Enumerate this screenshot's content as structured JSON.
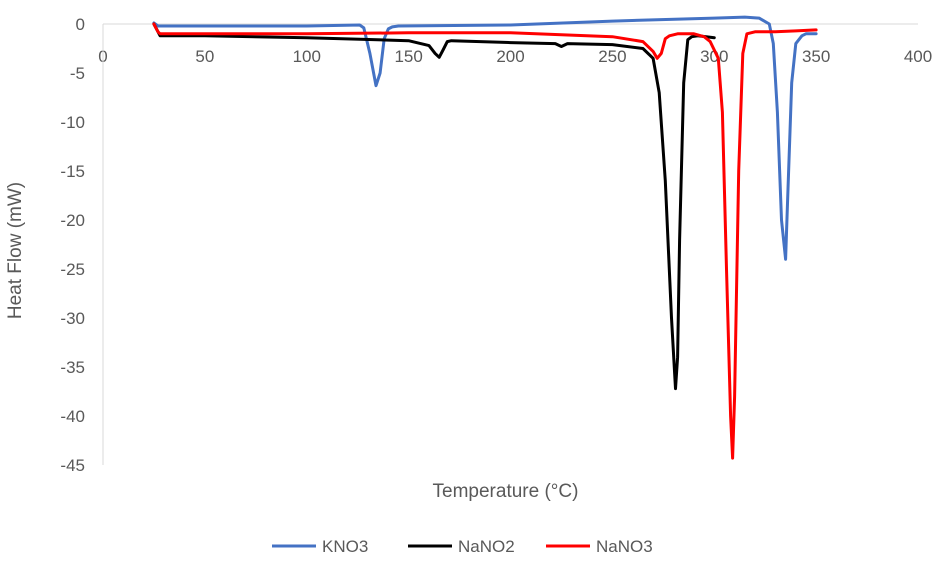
{
  "chart_data": {
    "type": "line",
    "title": "",
    "xlabel": "Temperature (°C)",
    "ylabel": "Heat Flow (mW)",
    "xlim": [
      0,
      400
    ],
    "ylim": [
      -45,
      0
    ],
    "x_ticks": [
      "0",
      "50",
      "100",
      "150",
      "200",
      "250",
      "300",
      "350",
      "400"
    ],
    "y_ticks": [
      "0",
      "-5",
      "-10",
      "-15",
      "-20",
      "-25",
      "-30",
      "-35",
      "-40",
      "-45"
    ],
    "grid": false,
    "legend_position": "bottom",
    "series": [
      {
        "name": "KNO3",
        "color": "#4472C4",
        "x": [
          25,
          27,
          50,
          100,
          126,
          128,
          131,
          134,
          136,
          138,
          140,
          142,
          145,
          200,
          250,
          300,
          315,
          322,
          327,
          329,
          331,
          333,
          335,
          336,
          338,
          340,
          343,
          345,
          350
        ],
        "y": [
          0.1,
          -0.2,
          -0.2,
          -0.2,
          -0.1,
          -0.4,
          -3.0,
          -6.3,
          -5.0,
          -1.5,
          -0.5,
          -0.3,
          -0.2,
          -0.1,
          0.3,
          0.6,
          0.7,
          0.6,
          0.0,
          -2.0,
          -9.0,
          -20.0,
          -24.0,
          -18.0,
          -6.0,
          -2.0,
          -1.2,
          -1.0,
          -1.0
        ]
      },
      {
        "name": "NaNO2",
        "color": "#000000",
        "x": [
          25,
          27,
          28,
          50,
          100,
          150,
          160,
          163,
          165,
          167,
          169,
          171,
          200,
          222,
          225,
          228,
          250,
          265,
          270,
          273,
          276,
          279,
          281,
          282,
          283,
          285,
          287,
          289,
          292,
          296,
          300
        ],
        "y": [
          0.0,
          -0.8,
          -1.2,
          -1.2,
          -1.4,
          -1.7,
          -2.2,
          -3.0,
          -3.4,
          -2.6,
          -1.8,
          -1.7,
          -1.9,
          -2.0,
          -2.3,
          -2.0,
          -2.1,
          -2.5,
          -3.5,
          -7.0,
          -16.0,
          -30.0,
          -37.2,
          -34.0,
          -22.0,
          -6.0,
          -1.6,
          -1.3,
          -1.2,
          -1.3,
          -1.4
        ]
      },
      {
        "name": "NaNO3",
        "color": "#FF0000",
        "x": [
          25,
          27,
          28,
          50,
          100,
          150,
          200,
          250,
          265,
          270,
          272,
          274,
          276,
          278,
          282,
          290,
          295,
          298,
          302,
          304,
          306,
          308,
          309,
          310,
          312,
          314,
          316,
          320,
          330,
          340,
          350
        ],
        "y": [
          0.0,
          -0.8,
          -1.0,
          -1.0,
          -1.0,
          -0.9,
          -0.9,
          -1.3,
          -1.8,
          -2.8,
          -3.5,
          -3.0,
          -1.5,
          -1.2,
          -1.0,
          -1.0,
          -1.3,
          -1.8,
          -3.5,
          -9.0,
          -25.0,
          -40.0,
          -44.3,
          -38.0,
          -15.0,
          -3.0,
          -1.0,
          -0.8,
          -0.8,
          -0.7,
          -0.6
        ]
      }
    ]
  }
}
